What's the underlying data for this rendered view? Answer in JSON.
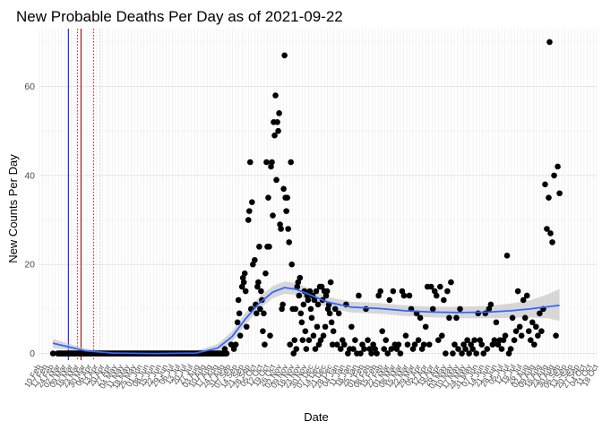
{
  "chart_data": {
    "type": "scatter",
    "title": "New Probable Deaths Per Day as of 2021-09-22",
    "xlabel": "Date",
    "ylabel": "New Counts Per Day",
    "xlim": [
      "2020-02-10",
      "2021-10-18"
    ],
    "ylim": [
      -1.5,
      73
    ],
    "y_ticks": [
      0,
      20,
      40,
      60
    ],
    "x_tick_labels": [
      "10 Feb",
      "17 Feb",
      "24 Feb",
      "02 Mar",
      "09 Mar",
      "16 Mar",
      "23 Mar",
      "30 Mar",
      "06 Apr",
      "13 Apr",
      "20 Apr",
      "27 Apr",
      "04 May",
      "11 May",
      "18 May",
      "25 May",
      "01 Jun",
      "08 Jun",
      "15 Jun",
      "22 Jun",
      "29 Jun",
      "06 Jul",
      "13 Jul",
      "20 Jul",
      "27 Jul",
      "03 Aug",
      "10 Aug",
      "17 Aug",
      "24 Aug",
      "31 Aug",
      "07 Sep",
      "14 Sep",
      "21 Sep",
      "28 Sep",
      "05 Oct",
      "12 Oct",
      "19 Oct",
      "26 Oct",
      "02 Nov",
      "09 Nov",
      "16 Nov",
      "23 Nov",
      "30 Nov",
      "07 Dec",
      "14 Dec",
      "21 Dec",
      "28 Dec",
      "04 Jan",
      "11 Jan",
      "18 Jan",
      "25 Jan",
      "01 Feb",
      "08 Feb",
      "15 Feb",
      "22 Feb",
      "01 Mar",
      "08 Mar",
      "15 Mar",
      "22 Mar",
      "29 Mar",
      "05 Apr",
      "12 Apr",
      "19 Apr",
      "26 Apr",
      "03 May",
      "10 May",
      "17 May",
      "24 May",
      "31 May",
      "07 Jun",
      "14 Jun",
      "21 Jun",
      "28 Jun",
      "05 Jul",
      "12 Jul",
      "19 Jul",
      "26 Jul",
      "02 Aug",
      "09 Aug",
      "16 Aug",
      "23 Aug",
      "30 Aug",
      "06 Sep",
      "13 Sep",
      "20 Sep",
      "27 Sep",
      "04 Oct",
      "11 Oct",
      "18 Oct"
    ],
    "vertical_lines": [
      {
        "x": "2020-03-13",
        "color": "#0000ff",
        "style": "solid"
      },
      {
        "x": "2020-03-23",
        "color": "#ff0000",
        "style": "dotted"
      },
      {
        "x": "2020-03-27",
        "color": "#8b0000",
        "style": "solid"
      },
      {
        "x": "2020-04-10",
        "color": "#ff0000",
        "style": "dotted"
      },
      {
        "x": "2020-04-17",
        "color": "#ffb6c1",
        "style": "dotted"
      }
    ],
    "point_color": "#000000",
    "smooth_color": "#3366ff",
    "band_color": "#bebebe",
    "zero_run": {
      "start": "2020-03-01",
      "end": "2020-09-04",
      "value": 0
    },
    "points": [
      {
        "x": "2020-02-25",
        "y": 0
      },
      {
        "x": "2020-03-13",
        "y": 0
      },
      {
        "x": "2020-09-02",
        "y": 1
      },
      {
        "x": "2020-09-09",
        "y": 2
      },
      {
        "x": "2020-09-12",
        "y": 1
      },
      {
        "x": "2020-09-14",
        "y": 2
      },
      {
        "x": "2020-09-16",
        "y": 7
      },
      {
        "x": "2020-09-17",
        "y": 12
      },
      {
        "x": "2020-09-18",
        "y": 9
      },
      {
        "x": "2020-09-19",
        "y": 4
      },
      {
        "x": "2020-09-21",
        "y": 15
      },
      {
        "x": "2020-09-22",
        "y": 17
      },
      {
        "x": "2020-09-23",
        "y": 16
      },
      {
        "x": "2020-09-24",
        "y": 18
      },
      {
        "x": "2020-09-25",
        "y": 14
      },
      {
        "x": "2020-09-26",
        "y": 6
      },
      {
        "x": "2020-09-28",
        "y": 30
      },
      {
        "x": "2020-09-29",
        "y": 32
      },
      {
        "x": "2020-09-30",
        "y": 43
      },
      {
        "x": "2020-10-01",
        "y": 10
      },
      {
        "x": "2020-10-02",
        "y": 34
      },
      {
        "x": "2020-10-03",
        "y": 20
      },
      {
        "x": "2020-10-05",
        "y": 21
      },
      {
        "x": "2020-10-06",
        "y": 11
      },
      {
        "x": "2020-10-07",
        "y": 9
      },
      {
        "x": "2020-10-08",
        "y": 15
      },
      {
        "x": "2020-10-09",
        "y": 16
      },
      {
        "x": "2020-10-10",
        "y": 24
      },
      {
        "x": "2020-10-11",
        "y": 10
      },
      {
        "x": "2020-10-12",
        "y": 14
      },
      {
        "x": "2020-10-13",
        "y": 12
      },
      {
        "x": "2020-10-14",
        "y": 5
      },
      {
        "x": "2020-10-15",
        "y": 9
      },
      {
        "x": "2020-10-16",
        "y": 2
      },
      {
        "x": "2020-10-17",
        "y": 18
      },
      {
        "x": "2020-10-18",
        "y": 43
      },
      {
        "x": "2020-10-19",
        "y": 24
      },
      {
        "x": "2020-10-20",
        "y": 35
      },
      {
        "x": "2020-10-21",
        "y": 24
      },
      {
        "x": "2020-10-22",
        "y": 4
      },
      {
        "x": "2020-10-23",
        "y": 42
      },
      {
        "x": "2020-10-24",
        "y": 43
      },
      {
        "x": "2020-10-25",
        "y": 31
      },
      {
        "x": "2020-10-26",
        "y": 52
      },
      {
        "x": "2020-10-27",
        "y": 49
      },
      {
        "x": "2020-10-28",
        "y": 58
      },
      {
        "x": "2020-10-29",
        "y": 39
      },
      {
        "x": "2020-10-30",
        "y": 52
      },
      {
        "x": "2020-10-31",
        "y": 50
      },
      {
        "x": "2020-11-01",
        "y": 54
      },
      {
        "x": "2020-11-02",
        "y": 29
      },
      {
        "x": "2020-11-03",
        "y": 28
      },
      {
        "x": "2020-11-04",
        "y": 10
      },
      {
        "x": "2020-11-05",
        "y": 11
      },
      {
        "x": "2020-11-06",
        "y": 37
      },
      {
        "x": "2020-11-07",
        "y": 67
      },
      {
        "x": "2020-11-08",
        "y": 35
      },
      {
        "x": "2020-11-09",
        "y": 32
      },
      {
        "x": "2020-11-10",
        "y": 35
      },
      {
        "x": "2020-11-11",
        "y": 28
      },
      {
        "x": "2020-11-12",
        "y": 25
      },
      {
        "x": "2020-11-13",
        "y": 2
      },
      {
        "x": "2020-11-14",
        "y": 43
      },
      {
        "x": "2020-11-15",
        "y": 20
      },
      {
        "x": "2020-11-16",
        "y": 10
      },
      {
        "x": "2020-11-17",
        "y": 0
      },
      {
        "x": "2020-11-18",
        "y": 3
      },
      {
        "x": "2020-11-19",
        "y": 10
      },
      {
        "x": "2020-11-20",
        "y": 1
      },
      {
        "x": "2020-11-21",
        "y": 15
      },
      {
        "x": "2020-11-22",
        "y": 16
      },
      {
        "x": "2020-11-23",
        "y": 13
      },
      {
        "x": "2020-11-24",
        "y": 17
      },
      {
        "x": "2020-11-25",
        "y": 9
      },
      {
        "x": "2020-11-26",
        "y": 7
      },
      {
        "x": "2020-11-27",
        "y": 3
      },
      {
        "x": "2020-11-28",
        "y": 11
      },
      {
        "x": "2020-11-29",
        "y": 14
      },
      {
        "x": "2020-11-30",
        "y": 5
      },
      {
        "x": "2020-12-01",
        "y": 1
      },
      {
        "x": "2020-12-02",
        "y": 13
      },
      {
        "x": "2020-12-03",
        "y": 12
      },
      {
        "x": "2020-12-04",
        "y": 3
      },
      {
        "x": "2020-12-05",
        "y": 14
      },
      {
        "x": "2020-12-06",
        "y": 10
      },
      {
        "x": "2020-12-07",
        "y": 8
      },
      {
        "x": "2020-12-08",
        "y": 13
      },
      {
        "x": "2020-12-09",
        "y": 4
      },
      {
        "x": "2020-12-10",
        "y": 12
      },
      {
        "x": "2020-12-11",
        "y": 1
      },
      {
        "x": "2020-12-12",
        "y": 14
      },
      {
        "x": "2020-12-13",
        "y": 6
      },
      {
        "x": "2020-12-14",
        "y": 11
      },
      {
        "x": "2020-12-15",
        "y": 2
      },
      {
        "x": "2020-12-16",
        "y": 15
      },
      {
        "x": "2020-12-17",
        "y": 3
      },
      {
        "x": "2020-12-18",
        "y": 15
      },
      {
        "x": "2020-12-19",
        "y": 12
      },
      {
        "x": "2020-12-20",
        "y": 4
      },
      {
        "x": "2020-12-21",
        "y": 14
      },
      {
        "x": "2020-12-22",
        "y": 6
      },
      {
        "x": "2020-12-23",
        "y": 13
      },
      {
        "x": "2020-12-24",
        "y": 14
      },
      {
        "x": "2020-12-25",
        "y": 10
      },
      {
        "x": "2020-12-26",
        "y": 11
      },
      {
        "x": "2020-12-27",
        "y": 9
      },
      {
        "x": "2020-12-28",
        "y": 16
      },
      {
        "x": "2020-12-29",
        "y": 7
      },
      {
        "x": "2020-12-30",
        "y": 2
      },
      {
        "x": "2020-12-31",
        "y": 5
      },
      {
        "x": "2021-01-02",
        "y": 10
      },
      {
        "x": "2021-01-04",
        "y": 2
      },
      {
        "x": "2021-01-06",
        "y": 9
      },
      {
        "x": "2021-01-08",
        "y": 1
      },
      {
        "x": "2021-01-10",
        "y": 3
      },
      {
        "x": "2021-01-12",
        "y": 2
      },
      {
        "x": "2021-01-14",
        "y": 11
      },
      {
        "x": "2021-01-16",
        "y": 0
      },
      {
        "x": "2021-01-18",
        "y": 1
      },
      {
        "x": "2021-01-20",
        "y": 6
      },
      {
        "x": "2021-01-22",
        "y": 1
      },
      {
        "x": "2021-01-24",
        "y": 3
      },
      {
        "x": "2021-01-26",
        "y": 0
      },
      {
        "x": "2021-01-28",
        "y": 13
      },
      {
        "x": "2021-01-30",
        "y": 0
      },
      {
        "x": "2021-02-01",
        "y": 2
      },
      {
        "x": "2021-02-03",
        "y": 1
      },
      {
        "x": "2021-02-05",
        "y": 10
      },
      {
        "x": "2021-02-07",
        "y": 3
      },
      {
        "x": "2021-02-09",
        "y": 1
      },
      {
        "x": "2021-02-11",
        "y": 0
      },
      {
        "x": "2021-02-13",
        "y": 2
      },
      {
        "x": "2021-02-15",
        "y": 1
      },
      {
        "x": "2021-02-17",
        "y": 0
      },
      {
        "x": "2021-02-19",
        "y": 13
      },
      {
        "x": "2021-02-21",
        "y": 14
      },
      {
        "x": "2021-02-23",
        "y": 5
      },
      {
        "x": "2021-02-25",
        "y": 1
      },
      {
        "x": "2021-02-27",
        "y": 3
      },
      {
        "x": "2021-03-01",
        "y": 0
      },
      {
        "x": "2021-03-03",
        "y": 12
      },
      {
        "x": "2021-03-05",
        "y": 1
      },
      {
        "x": "2021-03-07",
        "y": 14
      },
      {
        "x": "2021-03-09",
        "y": 2
      },
      {
        "x": "2021-03-11",
        "y": 1
      },
      {
        "x": "2021-03-13",
        "y": 2
      },
      {
        "x": "2021-03-15",
        "y": 0
      },
      {
        "x": "2021-03-17",
        "y": 14
      },
      {
        "x": "2021-03-19",
        "y": 13
      },
      {
        "x": "2021-03-21",
        "y": 4
      },
      {
        "x": "2021-03-23",
        "y": 2
      },
      {
        "x": "2021-03-25",
        "y": 13
      },
      {
        "x": "2021-03-27",
        "y": 10
      },
      {
        "x": "2021-03-29",
        "y": 1
      },
      {
        "x": "2021-03-31",
        "y": 2
      },
      {
        "x": "2021-04-02",
        "y": 9
      },
      {
        "x": "2021-04-04",
        "y": 3
      },
      {
        "x": "2021-04-06",
        "y": 8
      },
      {
        "x": "2021-04-08",
        "y": 1
      },
      {
        "x": "2021-04-10",
        "y": 2
      },
      {
        "x": "2021-04-12",
        "y": 6
      },
      {
        "x": "2021-04-14",
        "y": 15
      },
      {
        "x": "2021-04-16",
        "y": 2
      },
      {
        "x": "2021-04-18",
        "y": 15
      },
      {
        "x": "2021-04-20",
        "y": 10
      },
      {
        "x": "2021-04-22",
        "y": 14
      },
      {
        "x": "2021-04-24",
        "y": 13
      },
      {
        "x": "2021-04-26",
        "y": 3
      },
      {
        "x": "2021-04-28",
        "y": 15
      },
      {
        "x": "2021-04-30",
        "y": 4
      },
      {
        "x": "2021-05-02",
        "y": 12
      },
      {
        "x": "2021-05-04",
        "y": 0
      },
      {
        "x": "2021-05-06",
        "y": 14
      },
      {
        "x": "2021-05-08",
        "y": 8
      },
      {
        "x": "2021-05-10",
        "y": 16
      },
      {
        "x": "2021-05-12",
        "y": 0
      },
      {
        "x": "2021-05-14",
        "y": 2
      },
      {
        "x": "2021-05-16",
        "y": 8
      },
      {
        "x": "2021-05-18",
        "y": 1
      },
      {
        "x": "2021-05-20",
        "y": 10
      },
      {
        "x": "2021-05-22",
        "y": 0
      },
      {
        "x": "2021-05-24",
        "y": 2
      },
      {
        "x": "2021-05-26",
        "y": 1
      },
      {
        "x": "2021-05-28",
        "y": 3
      },
      {
        "x": "2021-05-30",
        "y": 0
      },
      {
        "x": "2021-06-01",
        "y": 2
      },
      {
        "x": "2021-06-03",
        "y": 1
      },
      {
        "x": "2021-06-05",
        "y": 3
      },
      {
        "x": "2021-06-07",
        "y": 0
      },
      {
        "x": "2021-06-09",
        "y": 9
      },
      {
        "x": "2021-06-11",
        "y": 3
      },
      {
        "x": "2021-06-13",
        "y": 2
      },
      {
        "x": "2021-06-15",
        "y": 0
      },
      {
        "x": "2021-06-17",
        "y": 9
      },
      {
        "x": "2021-06-19",
        "y": 1
      },
      {
        "x": "2021-06-21",
        "y": 10
      },
      {
        "x": "2021-06-23",
        "y": 11
      },
      {
        "x": "2021-06-25",
        "y": 2
      },
      {
        "x": "2021-06-27",
        "y": 3
      },
      {
        "x": "2021-06-29",
        "y": 7
      },
      {
        "x": "2021-07-01",
        "y": 2
      },
      {
        "x": "2021-07-03",
        "y": 3
      },
      {
        "x": "2021-07-05",
        "y": 1
      },
      {
        "x": "2021-07-07",
        "y": 3
      },
      {
        "x": "2021-07-09",
        "y": 4
      },
      {
        "x": "2021-07-11",
        "y": 22
      },
      {
        "x": "2021-07-13",
        "y": 0
      },
      {
        "x": "2021-07-15",
        "y": 1
      },
      {
        "x": "2021-07-17",
        "y": 8
      },
      {
        "x": "2021-07-19",
        "y": 3
      },
      {
        "x": "2021-07-21",
        "y": 5
      },
      {
        "x": "2021-07-23",
        "y": 14
      },
      {
        "x": "2021-07-25",
        "y": 6
      },
      {
        "x": "2021-07-27",
        "y": 4
      },
      {
        "x": "2021-07-29",
        "y": 12
      },
      {
        "x": "2021-07-31",
        "y": 8
      },
      {
        "x": "2021-08-02",
        "y": 13
      },
      {
        "x": "2021-08-04",
        "y": 5
      },
      {
        "x": "2021-08-06",
        "y": 3
      },
      {
        "x": "2021-08-08",
        "y": 7
      },
      {
        "x": "2021-08-10",
        "y": 2
      },
      {
        "x": "2021-08-12",
        "y": 6
      },
      {
        "x": "2021-08-14",
        "y": 4
      },
      {
        "x": "2021-08-16",
        "y": 9
      },
      {
        "x": "2021-08-18",
        "y": 5
      },
      {
        "x": "2021-08-20",
        "y": 10
      },
      {
        "x": "2021-08-22",
        "y": 38
      },
      {
        "x": "2021-08-24",
        "y": 28
      },
      {
        "x": "2021-08-26",
        "y": 35
      },
      {
        "x": "2021-08-27",
        "y": 70
      },
      {
        "x": "2021-08-28",
        "y": 27
      },
      {
        "x": "2021-08-30",
        "y": 25
      },
      {
        "x": "2021-09-01",
        "y": 40
      },
      {
        "x": "2021-09-03",
        "y": 4
      },
      {
        "x": "2021-09-05",
        "y": 42
      },
      {
        "x": "2021-09-07",
        "y": 36
      }
    ],
    "smooth": [
      {
        "x": "2020-02-25",
        "y": 2.3,
        "lo": 1.3,
        "hi": 3.3
      },
      {
        "x": "2020-03-15",
        "y": 1.4,
        "lo": 0.7,
        "hi": 2.1
      },
      {
        "x": "2020-04-01",
        "y": 0.6,
        "lo": 0.1,
        "hi": 1.1
      },
      {
        "x": "2020-05-01",
        "y": 0.1,
        "lo": -0.3,
        "hi": 0.5
      },
      {
        "x": "2020-06-15",
        "y": 0.0,
        "lo": -0.4,
        "hi": 0.4
      },
      {
        "x": "2020-08-01",
        "y": 0.1,
        "lo": -0.3,
        "hi": 0.6
      },
      {
        "x": "2020-08-25",
        "y": 1.2,
        "lo": 0.3,
        "hi": 2.1
      },
      {
        "x": "2020-09-10",
        "y": 3.8,
        "lo": 2.6,
        "hi": 5.0
      },
      {
        "x": "2020-09-25",
        "y": 7.8,
        "lo": 6.5,
        "hi": 9.2
      },
      {
        "x": "2020-10-10",
        "y": 11.3,
        "lo": 10.0,
        "hi": 12.7
      },
      {
        "x": "2020-10-25",
        "y": 13.8,
        "lo": 12.4,
        "hi": 15.2
      },
      {
        "x": "2020-11-07",
        "y": 14.8,
        "lo": 13.4,
        "hi": 16.2
      },
      {
        "x": "2020-11-20",
        "y": 14.4,
        "lo": 13.1,
        "hi": 15.8
      },
      {
        "x": "2020-12-05",
        "y": 13.2,
        "lo": 11.9,
        "hi": 14.5
      },
      {
        "x": "2020-12-25",
        "y": 11.5,
        "lo": 10.3,
        "hi": 12.7
      },
      {
        "x": "2021-01-20",
        "y": 10.4,
        "lo": 9.2,
        "hi": 11.6
      },
      {
        "x": "2021-02-20",
        "y": 10.1,
        "lo": 8.9,
        "hi": 11.3
      },
      {
        "x": "2021-03-20",
        "y": 9.6,
        "lo": 8.4,
        "hi": 10.8
      },
      {
        "x": "2021-04-20",
        "y": 9.3,
        "lo": 8.1,
        "hi": 10.5
      },
      {
        "x": "2021-05-20",
        "y": 9.2,
        "lo": 7.9,
        "hi": 10.5
      },
      {
        "x": "2021-06-20",
        "y": 9.3,
        "lo": 7.9,
        "hi": 10.7
      },
      {
        "x": "2021-07-15",
        "y": 9.6,
        "lo": 8.0,
        "hi": 11.2
      },
      {
        "x": "2021-08-05",
        "y": 10.0,
        "lo": 8.1,
        "hi": 11.9
      },
      {
        "x": "2021-08-25",
        "y": 10.5,
        "lo": 7.9,
        "hi": 13.3
      },
      {
        "x": "2021-09-07",
        "y": 10.8,
        "lo": 7.3,
        "hi": 14.5
      }
    ]
  }
}
